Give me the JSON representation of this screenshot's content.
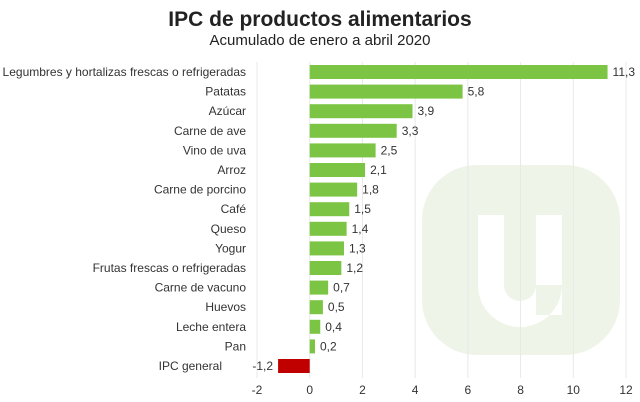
{
  "chart_data": {
    "type": "bar",
    "orientation": "horizontal",
    "title": "IPC de productos alimentarios",
    "subtitle": "Acumulado de enero a abril 2020",
    "categories": [
      "Legumbres y hortalizas frescas o refrigeradas",
      "Patatas",
      "Azúcar",
      "Carne de ave",
      "Vino de uva",
      "Arroz",
      "Carne de porcino",
      "Café",
      "Queso",
      "Yogur",
      "Frutas frescas o refrigeradas",
      "Carne de vacuno",
      "Huevos",
      "Leche entera",
      "Pan",
      "IPC general"
    ],
    "values": [
      11.3,
      5.8,
      3.9,
      3.3,
      2.5,
      2.1,
      1.8,
      1.5,
      1.4,
      1.3,
      1.2,
      0.7,
      0.5,
      0.4,
      0.2,
      -1.2
    ],
    "value_labels": [
      "11,3",
      "5,8",
      "3,9",
      "3,3",
      "2,5",
      "2,1",
      "1,8",
      "1,5",
      "1,4",
      "1,3",
      "1,2",
      "0,7",
      "0,5",
      "0,4",
      "0,2",
      "-1,2"
    ],
    "xlim": [
      -2,
      12
    ],
    "xticks": [
      "-2",
      "0",
      "2",
      "4",
      "6",
      "8",
      "10",
      "12"
    ],
    "xtick_values": [
      -2,
      0,
      2,
      4,
      6,
      8,
      10,
      12
    ],
    "grid": "vertical",
    "colors": {
      "positive": "#7cc443",
      "negative": "#c00000",
      "watermark": "#eef5e8"
    },
    "watermark_icon": "u-logo"
  }
}
